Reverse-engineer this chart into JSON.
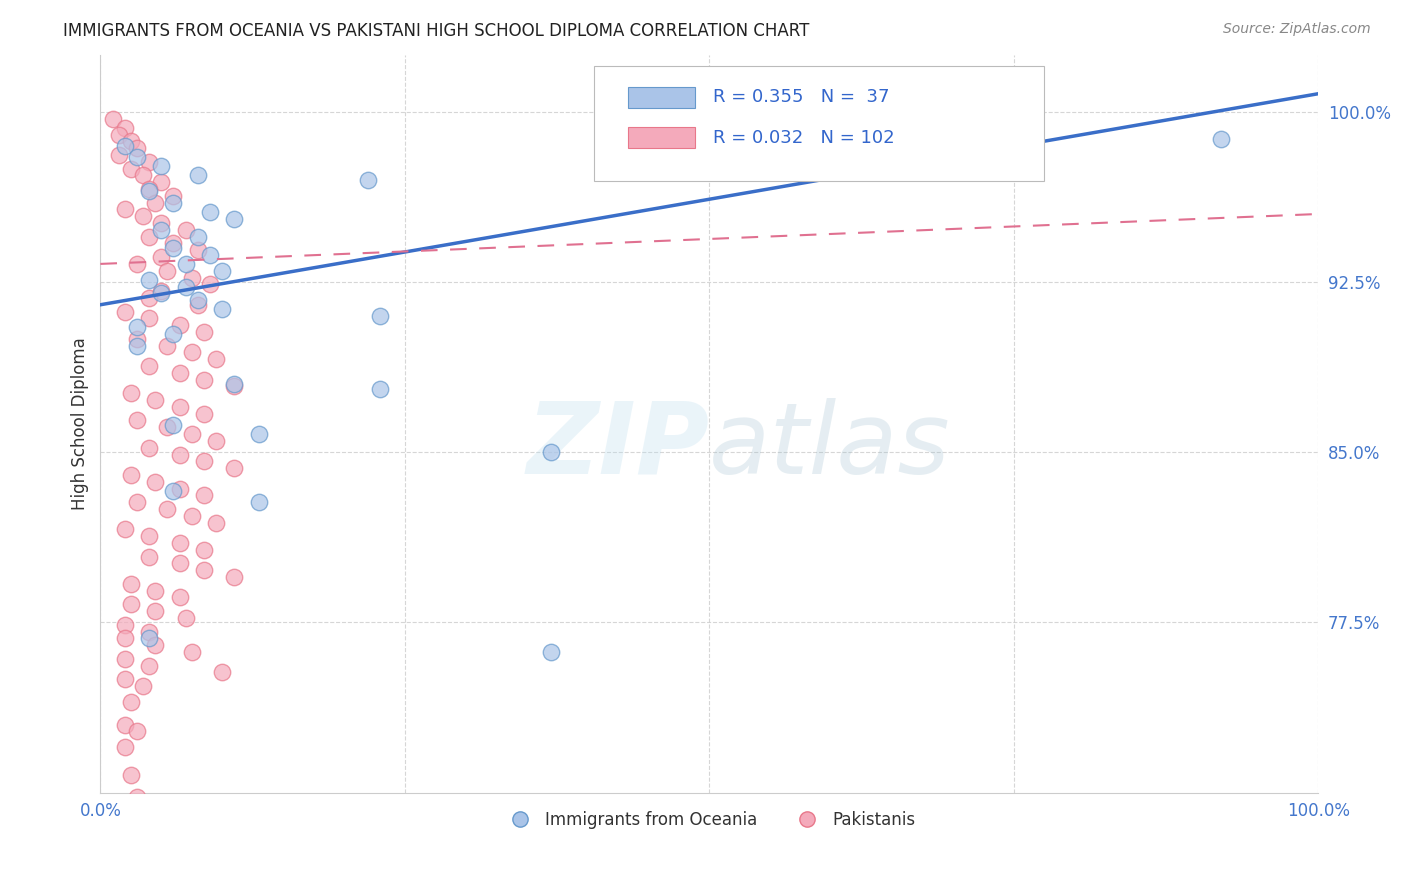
{
  "title": "IMMIGRANTS FROM OCEANIA VS PAKISTANI HIGH SCHOOL DIPLOMA CORRELATION CHART",
  "source": "Source: ZipAtlas.com",
  "ylabel": "High School Diploma",
  "xmin": 0.0,
  "xmax": 1.0,
  "ymin": 0.7,
  "ymax": 1.025,
  "yticks": [
    0.775,
    0.85,
    0.925,
    1.0
  ],
  "ytick_labels": [
    "77.5%",
    "85.0%",
    "92.5%",
    "100.0%"
  ],
  "xticks": [
    0.0,
    0.25,
    0.5,
    0.75,
    1.0
  ],
  "xtick_labels": [
    "0.0%",
    "",
    "",
    "",
    "100.0%"
  ],
  "watermark_zip": "ZIP",
  "watermark_atlas": "atlas",
  "blue_color": "#AAC4E8",
  "blue_edge": "#6699CC",
  "pink_color": "#F4AABB",
  "pink_edge": "#E8778A",
  "blue_R": 0.355,
  "blue_N": 37,
  "pink_R": 0.032,
  "pink_N": 102,
  "blue_line_color": "#3A6EC8",
  "pink_line_color": "#E07090",
  "legend_label_blue": "Immigrants from Oceania",
  "legend_label_pink": "Pakistanis",
  "blue_line_y0": 0.915,
  "blue_line_y1": 1.008,
  "pink_line_y0": 0.933,
  "pink_line_y1": 0.955,
  "blue_scatter": [
    [
      0.02,
      0.985
    ],
    [
      0.03,
      0.98
    ],
    [
      0.05,
      0.976
    ],
    [
      0.08,
      0.972
    ],
    [
      0.22,
      0.97
    ],
    [
      0.04,
      0.965
    ],
    [
      0.06,
      0.96
    ],
    [
      0.09,
      0.956
    ],
    [
      0.11,
      0.953
    ],
    [
      0.05,
      0.948
    ],
    [
      0.08,
      0.945
    ],
    [
      0.06,
      0.94
    ],
    [
      0.09,
      0.937
    ],
    [
      0.07,
      0.933
    ],
    [
      0.1,
      0.93
    ],
    [
      0.04,
      0.926
    ],
    [
      0.07,
      0.923
    ],
    [
      0.05,
      0.92
    ],
    [
      0.08,
      0.917
    ],
    [
      0.1,
      0.913
    ],
    [
      0.23,
      0.91
    ],
    [
      0.03,
      0.905
    ],
    [
      0.06,
      0.902
    ],
    [
      0.03,
      0.897
    ],
    [
      0.11,
      0.88
    ],
    [
      0.23,
      0.878
    ],
    [
      0.06,
      0.862
    ],
    [
      0.13,
      0.858
    ],
    [
      0.37,
      0.85
    ],
    [
      0.06,
      0.833
    ],
    [
      0.13,
      0.828
    ],
    [
      0.04,
      0.768
    ],
    [
      0.37,
      0.762
    ],
    [
      0.76,
      0.985
    ],
    [
      0.92,
      0.988
    ]
  ],
  "pink_scatter": [
    [
      0.01,
      0.997
    ],
    [
      0.02,
      0.993
    ],
    [
      0.015,
      0.99
    ],
    [
      0.025,
      0.987
    ],
    [
      0.03,
      0.984
    ],
    [
      0.015,
      0.981
    ],
    [
      0.04,
      0.978
    ],
    [
      0.025,
      0.975
    ],
    [
      0.035,
      0.972
    ],
    [
      0.05,
      0.969
    ],
    [
      0.04,
      0.966
    ],
    [
      0.06,
      0.963
    ],
    [
      0.045,
      0.96
    ],
    [
      0.02,
      0.957
    ],
    [
      0.035,
      0.954
    ],
    [
      0.05,
      0.951
    ],
    [
      0.07,
      0.948
    ],
    [
      0.04,
      0.945
    ],
    [
      0.06,
      0.942
    ],
    [
      0.08,
      0.939
    ],
    [
      0.05,
      0.936
    ],
    [
      0.03,
      0.933
    ],
    [
      0.055,
      0.93
    ],
    [
      0.075,
      0.927
    ],
    [
      0.09,
      0.924
    ],
    [
      0.05,
      0.921
    ],
    [
      0.04,
      0.918
    ],
    [
      0.08,
      0.915
    ],
    [
      0.02,
      0.912
    ],
    [
      0.04,
      0.909
    ],
    [
      0.065,
      0.906
    ],
    [
      0.085,
      0.903
    ],
    [
      0.03,
      0.9
    ],
    [
      0.055,
      0.897
    ],
    [
      0.075,
      0.894
    ],
    [
      0.095,
      0.891
    ],
    [
      0.04,
      0.888
    ],
    [
      0.065,
      0.885
    ],
    [
      0.085,
      0.882
    ],
    [
      0.11,
      0.879
    ],
    [
      0.025,
      0.876
    ],
    [
      0.045,
      0.873
    ],
    [
      0.065,
      0.87
    ],
    [
      0.085,
      0.867
    ],
    [
      0.03,
      0.864
    ],
    [
      0.055,
      0.861
    ],
    [
      0.075,
      0.858
    ],
    [
      0.095,
      0.855
    ],
    [
      0.04,
      0.852
    ],
    [
      0.065,
      0.849
    ],
    [
      0.085,
      0.846
    ],
    [
      0.11,
      0.843
    ],
    [
      0.025,
      0.84
    ],
    [
      0.045,
      0.837
    ],
    [
      0.065,
      0.834
    ],
    [
      0.085,
      0.831
    ],
    [
      0.03,
      0.828
    ],
    [
      0.055,
      0.825
    ],
    [
      0.075,
      0.822
    ],
    [
      0.095,
      0.819
    ],
    [
      0.02,
      0.816
    ],
    [
      0.04,
      0.813
    ],
    [
      0.065,
      0.81
    ],
    [
      0.085,
      0.807
    ],
    [
      0.04,
      0.804
    ],
    [
      0.065,
      0.801
    ],
    [
      0.085,
      0.798
    ],
    [
      0.11,
      0.795
    ],
    [
      0.025,
      0.792
    ],
    [
      0.045,
      0.789
    ],
    [
      0.065,
      0.786
    ],
    [
      0.025,
      0.783
    ],
    [
      0.045,
      0.78
    ],
    [
      0.07,
      0.777
    ],
    [
      0.02,
      0.774
    ],
    [
      0.04,
      0.771
    ],
    [
      0.02,
      0.768
    ],
    [
      0.045,
      0.765
    ],
    [
      0.075,
      0.762
    ],
    [
      0.02,
      0.759
    ],
    [
      0.04,
      0.756
    ],
    [
      0.1,
      0.753
    ],
    [
      0.02,
      0.75
    ],
    [
      0.035,
      0.747
    ],
    [
      0.025,
      0.74
    ],
    [
      0.02,
      0.73
    ],
    [
      0.03,
      0.727
    ],
    [
      0.02,
      0.72
    ],
    [
      0.025,
      0.708
    ],
    [
      0.03,
      0.698
    ]
  ]
}
